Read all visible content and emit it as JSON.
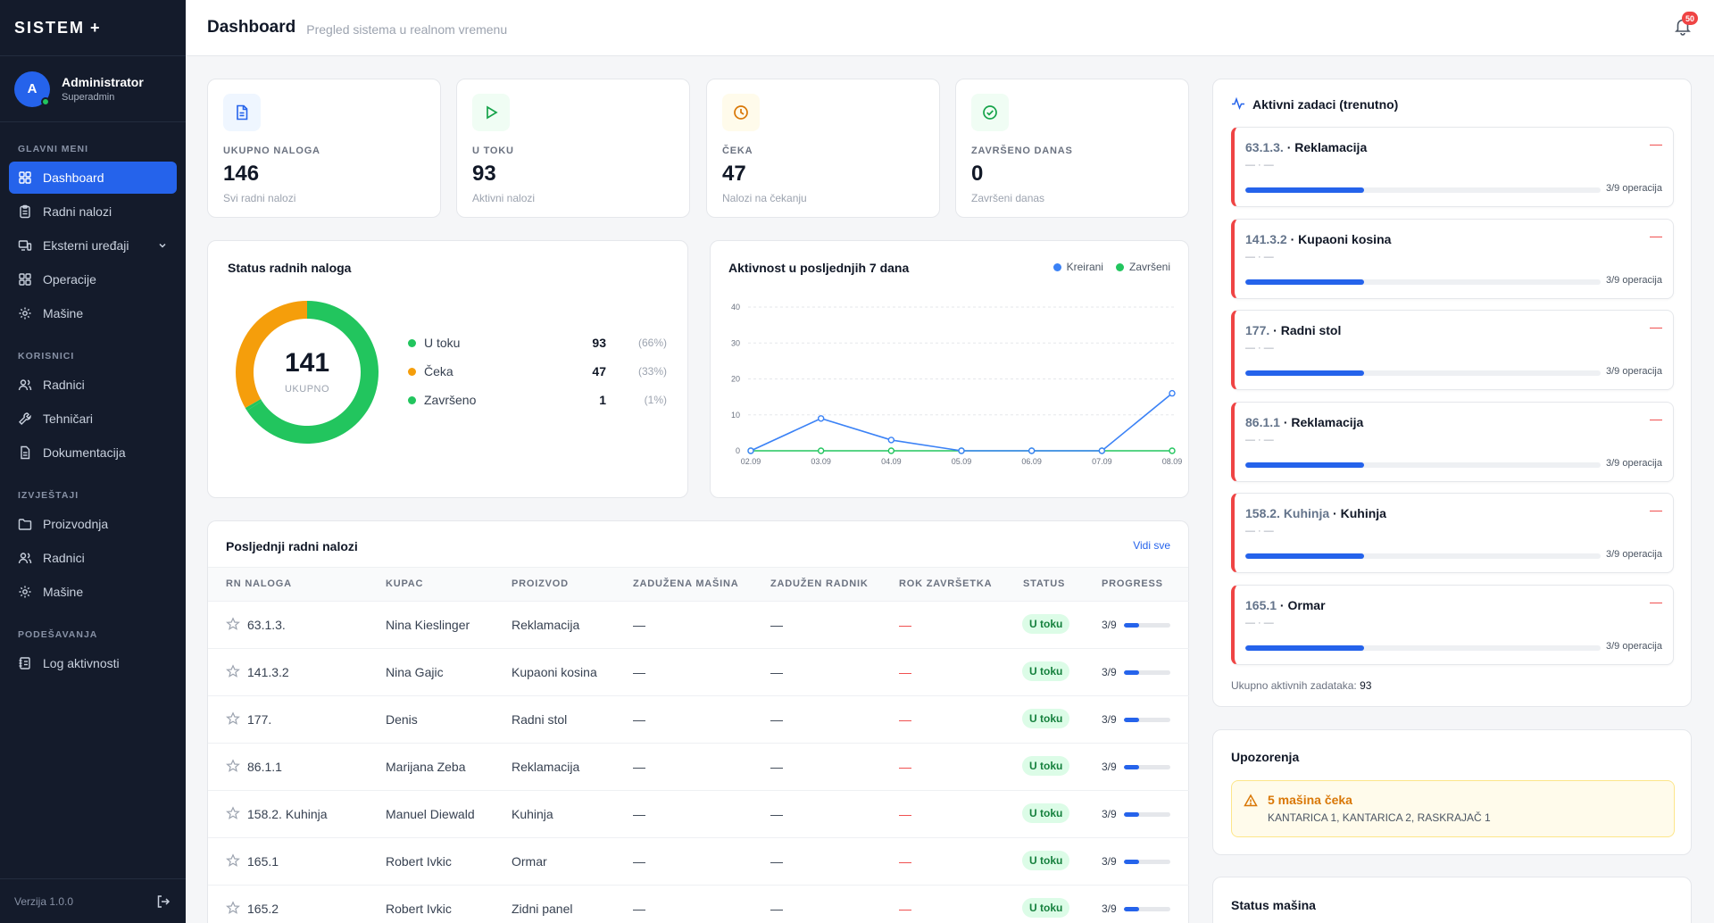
{
  "sidebar": {
    "brand": "SISTEM",
    "brand_symbol": "+",
    "user": {
      "initial": "A",
      "name": "Administrator",
      "role": "Superadmin"
    },
    "sections": [
      {
        "label": "GLAVNI MENI"
      },
      {
        "label": "KORISNICI"
      },
      {
        "label": "IZVJEŠTAJI"
      },
      {
        "label": "PODEŠAVANJA"
      }
    ],
    "items": [
      {
        "label": "Dashboard",
        "icon": "grid-icon",
        "active": true
      },
      {
        "label": "Radni nalozi",
        "icon": "clipboard-icon"
      },
      {
        "label": "Eksterni uređaji",
        "icon": "devices-icon",
        "expandable": true
      },
      {
        "label": "Operacije",
        "icon": "grid-icon"
      },
      {
        "label": "Mašine",
        "icon": "gear-icon"
      },
      {
        "label": "Radnici",
        "icon": "users-icon"
      },
      {
        "label": "Tehničari",
        "icon": "wrench-icon"
      },
      {
        "label": "Dokumentacija",
        "icon": "document-icon"
      },
      {
        "label": "Proizvodnja",
        "icon": "folder-icon"
      },
      {
        "label": "Radnici",
        "icon": "users-icon"
      },
      {
        "label": "Mašine",
        "icon": "gear-icon"
      },
      {
        "label": "Log aktivnosti",
        "icon": "log-icon"
      }
    ],
    "version": "Verzija 1.0.0"
  },
  "header": {
    "title": "Dashboard",
    "subtitle": "Pregled sistema u realnom vremenu",
    "notifications": "50"
  },
  "stats": [
    {
      "label": "UKUPNO NALOGA",
      "value": "146",
      "sub": "Svi radni nalozi",
      "color": "#2563eb",
      "bg": "#eff6ff"
    },
    {
      "label": "U TOKU",
      "value": "93",
      "sub": "Aktivni nalozi",
      "color": "#16a34a",
      "bg": "#f0fdf4"
    },
    {
      "label": "ČEKA",
      "value": "47",
      "sub": "Nalozi na čekanju",
      "color": "#d97706",
      "bg": "#fffbeb"
    },
    {
      "label": "ZAVRŠENO DANAS",
      "value": "0",
      "sub": "Završeni danas",
      "color": "#16a34a",
      "bg": "#f0fdf4"
    }
  ],
  "status_chart": {
    "title": "Status radnih naloga",
    "total": "141",
    "total_label": "UKUPNO",
    "items": [
      {
        "label": "U toku",
        "value": "93",
        "pct": "(66%)",
        "color": "#22c55e"
      },
      {
        "label": "Čeka",
        "value": "47",
        "pct": "(33%)",
        "color": "#f59e0b"
      },
      {
        "label": "Završeno",
        "value": "1",
        "pct": "(1%)",
        "color": "#22c55e"
      }
    ]
  },
  "chart_data": [
    {
      "type": "pie",
      "title": "Status radnih naloga",
      "categories": [
        "U toku",
        "Čeka",
        "Završeno"
      ],
      "values": [
        93,
        47,
        1
      ],
      "colors": [
        "#22c55e",
        "#f59e0b",
        "#22c55e"
      ]
    },
    {
      "type": "line",
      "title": "Aktivnost u posljednjih 7 dana",
      "categories": [
        "02.09",
        "03.09",
        "04.09",
        "05.09",
        "06.09",
        "07.09",
        "08.09"
      ],
      "series": [
        {
          "name": "Kreirani",
          "values": [
            0,
            9,
            3,
            0,
            0,
            0,
            16
          ],
          "color": "#3b82f6"
        },
        {
          "name": "Završeni",
          "values": [
            0,
            0,
            0,
            0,
            0,
            0,
            0
          ],
          "color": "#22c55e"
        }
      ],
      "ylim": [
        0,
        40
      ],
      "yticks": [
        "0",
        "10",
        "20",
        "30",
        "40"
      ],
      "legend": "top-right",
      "grid": true
    }
  ],
  "table": {
    "title": "Posljednji radni nalozi",
    "view_all": "Vidi sve",
    "columns": [
      "RN NALOGA",
      "KUPAC",
      "PROIZVOD",
      "ZADUŽENA MAŠINA",
      "ZADUŽEN RADNIK",
      "ROK ZAVRŠETKA",
      "STATUS",
      "PROGRESS"
    ],
    "rows": [
      {
        "rn": "63.1.3.",
        "kupac": "Nina Kieslinger",
        "proizvod": "Reklamacija",
        "masina": "—",
        "radnik": "—",
        "rok": "—",
        "status": "U toku",
        "progress": "3/9",
        "fraction": 0.333
      },
      {
        "rn": "141.3.2",
        "kupac": "Nina Gajic",
        "proizvod": "Kupaoni kosina",
        "masina": "—",
        "radnik": "—",
        "rok": "—",
        "status": "U toku",
        "progress": "3/9",
        "fraction": 0.333
      },
      {
        "rn": "177.",
        "kupac": "Denis",
        "proizvod": "Radni stol",
        "masina": "—",
        "radnik": "—",
        "rok": "—",
        "status": "U toku",
        "progress": "3/9",
        "fraction": 0.333
      },
      {
        "rn": "86.1.1",
        "kupac": "Marijana Zeba",
        "proizvod": "Reklamacija",
        "masina": "—",
        "radnik": "—",
        "rok": "—",
        "status": "U toku",
        "progress": "3/9",
        "fraction": 0.333
      },
      {
        "rn": "158.2. Kuhinja",
        "kupac": "Manuel Diewald",
        "proizvod": "Kuhinja",
        "masina": "—",
        "radnik": "—",
        "rok": "—",
        "status": "U toku",
        "progress": "3/9",
        "fraction": 0.333
      },
      {
        "rn": "165.1",
        "kupac": "Robert Ivkic",
        "proizvod": "Ormar",
        "masina": "—",
        "radnik": "—",
        "rok": "—",
        "status": "U toku",
        "progress": "3/9",
        "fraction": 0.333
      },
      {
        "rn": "165.2",
        "kupac": "Robert Ivkic",
        "proizvod": "Zidni panel",
        "masina": "—",
        "radnik": "—",
        "rok": "—",
        "status": "U toku",
        "progress": "3/9",
        "fraction": 0.333
      }
    ]
  },
  "active_tasks": {
    "title": "Aktivni zadaci (trenutno)",
    "items": [
      {
        "code": "63.1.3.",
        "name": "Reklamacija",
        "sub": "— · —",
        "indicator": "—",
        "ops": "3/9 operacija",
        "fraction": 0.333
      },
      {
        "code": "141.3.2",
        "name": "Kupaoni kosina",
        "sub": "— · —",
        "indicator": "—",
        "ops": "3/9 operacija",
        "fraction": 0.333
      },
      {
        "code": "177.",
        "name": "Radni stol",
        "sub": "— · —",
        "indicator": "—",
        "ops": "3/9 operacija",
        "fraction": 0.333
      },
      {
        "code": "86.1.1",
        "name": "Reklamacija",
        "sub": "— · —",
        "indicator": "—",
        "ops": "3/9 operacija",
        "fraction": 0.333
      },
      {
        "code": "158.2. Kuhinja",
        "name": "Kuhinja",
        "sub": "— · —",
        "indicator": "—",
        "ops": "3/9 operacija",
        "fraction": 0.333
      },
      {
        "code": "165.1",
        "name": "Ormar",
        "sub": "— · —",
        "indicator": "—",
        "ops": "3/9 operacija",
        "fraction": 0.333
      }
    ],
    "total_label": "Ukupno aktivnih zadataka:",
    "total": "93"
  },
  "warnings": {
    "title": "Upozorenja",
    "heading": "5 mašina čeka",
    "detail": "KANTARICA 1, KANTARICA 2, RASKRAJAČ 1"
  },
  "machine_status": {
    "title": "Status mašina"
  }
}
